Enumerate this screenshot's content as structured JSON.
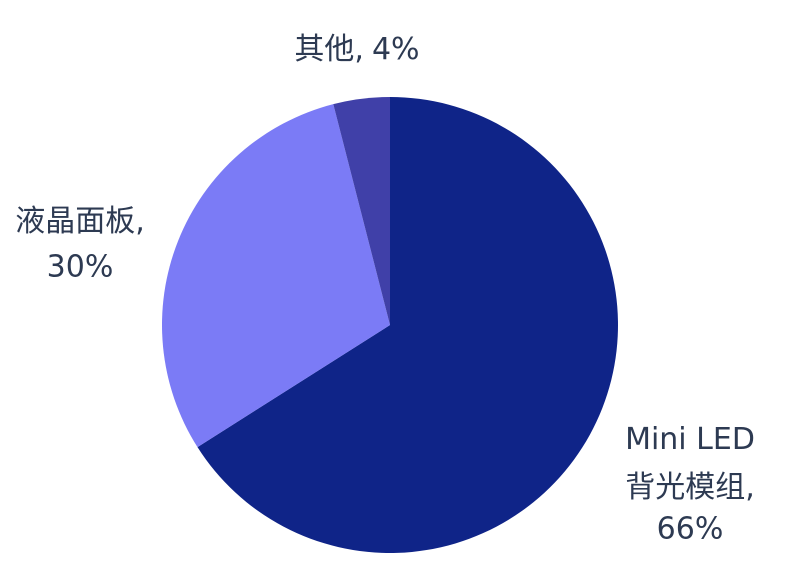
{
  "chart_data": {
    "type": "pie",
    "categories": [
      "Mini LED 背光模组,",
      "液晶面板,",
      "其他,"
    ],
    "values": [
      66,
      30,
      4
    ],
    "value_labels": [
      "66%",
      "30%",
      "4%"
    ],
    "colors": [
      "#0f2488",
      "#7b7bf6",
      "#4040a8"
    ]
  }
}
